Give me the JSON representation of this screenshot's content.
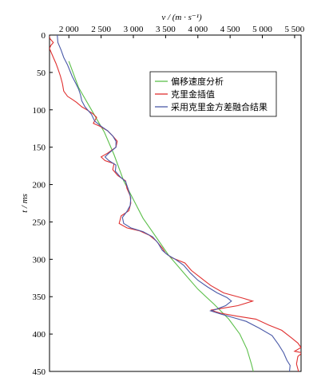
{
  "chart_data": {
    "type": "line",
    "xlabel": "v / (m · s⁻¹)",
    "ylabel": "t / ms",
    "x_axis_position": "top",
    "y_axis_inverted": true,
    "xlim": [
      1700,
      5600
    ],
    "ylim": [
      0,
      450
    ],
    "xticks": [
      2000,
      2500,
      3000,
      3500,
      4000,
      4500,
      5000,
      5500
    ],
    "xtick_labels": [
      "2 000",
      "2 500",
      "3 000",
      "3 500",
      "4 000",
      "4 500",
      "5 000",
      "5 500"
    ],
    "yticks": [
      0,
      50,
      100,
      150,
      200,
      250,
      300,
      350,
      400,
      450
    ],
    "ytick_labels": [
      "0",
      "50",
      "100",
      "150",
      "200",
      "250",
      "300",
      "350",
      "400",
      "450"
    ],
    "grid": false,
    "legend_position": "top-right",
    "series": [
      {
        "name": "偏移速度分析",
        "color": "#5cbf4a",
        "points": [
          [
            2000,
            35
          ],
          [
            2150,
            70
          ],
          [
            2350,
            100
          ],
          [
            2550,
            130
          ],
          [
            2700,
            160
          ],
          [
            2850,
            195
          ],
          [
            3000,
            220
          ],
          [
            3150,
            245
          ],
          [
            3350,
            270
          ],
          [
            3550,
            295
          ],
          [
            3800,
            320
          ],
          [
            4000,
            340
          ],
          [
            4250,
            360
          ],
          [
            4480,
            380
          ],
          [
            4650,
            400
          ],
          [
            4760,
            420
          ],
          [
            4830,
            440
          ],
          [
            4860,
            450
          ]
        ]
      },
      {
        "name": "克里金插值",
        "color": "#e03030",
        "points": [
          [
            1690,
            0
          ],
          [
            1710,
            5
          ],
          [
            1760,
            10
          ],
          [
            1720,
            14
          ],
          [
            1700,
            18
          ],
          [
            1730,
            24
          ],
          [
            1760,
            30
          ],
          [
            1800,
            38
          ],
          [
            1830,
            45
          ],
          [
            1870,
            55
          ],
          [
            1900,
            65
          ],
          [
            1920,
            75
          ],
          [
            1980,
            82
          ],
          [
            2050,
            86
          ],
          [
            2120,
            90
          ],
          [
            2200,
            96
          ],
          [
            2280,
            100
          ],
          [
            2370,
            105
          ],
          [
            2430,
            110
          ],
          [
            2380,
            118
          ],
          [
            2480,
            122
          ],
          [
            2600,
            128
          ],
          [
            2680,
            135
          ],
          [
            2750,
            142
          ],
          [
            2730,
            150
          ],
          [
            2600,
            158
          ],
          [
            2500,
            163
          ],
          [
            2560,
            168
          ],
          [
            2700,
            172
          ],
          [
            2680,
            180
          ],
          [
            2760,
            188
          ],
          [
            2880,
            195
          ],
          [
            2900,
            205
          ],
          [
            2950,
            215
          ],
          [
            2960,
            225
          ],
          [
            2930,
            235
          ],
          [
            2810,
            242
          ],
          [
            2780,
            252
          ],
          [
            2900,
            258
          ],
          [
            3100,
            262
          ],
          [
            3250,
            268
          ],
          [
            3350,
            275
          ],
          [
            3450,
            285
          ],
          [
            3500,
            292
          ],
          [
            3600,
            298
          ],
          [
            3800,
            305
          ],
          [
            3900,
            315
          ],
          [
            4050,
            325
          ],
          [
            4200,
            335
          ],
          [
            4400,
            345
          ],
          [
            4700,
            352
          ],
          [
            4850,
            356
          ],
          [
            4620,
            362
          ],
          [
            4350,
            366
          ],
          [
            4200,
            368
          ],
          [
            4350,
            372
          ],
          [
            4600,
            376
          ],
          [
            4900,
            380
          ],
          [
            5100,
            388
          ],
          [
            5300,
            395
          ],
          [
            5450,
            405
          ],
          [
            5550,
            412
          ],
          [
            5600,
            418
          ],
          [
            5500,
            423
          ],
          [
            5620,
            425
          ],
          [
            5550,
            430
          ],
          [
            5530,
            440
          ],
          [
            5560,
            450
          ]
        ]
      },
      {
        "name": "采用克里金方差融合结果",
        "color": "#4a5aa8",
        "points": [
          [
            1820,
            0
          ],
          [
            1830,
            10
          ],
          [
            1880,
            20
          ],
          [
            1920,
            30
          ],
          [
            1980,
            40
          ],
          [
            2050,
            55
          ],
          [
            2110,
            65
          ],
          [
            2150,
            72
          ],
          [
            2180,
            80
          ],
          [
            2200,
            88
          ],
          [
            2250,
            96
          ],
          [
            2350,
            106
          ],
          [
            2400,
            115
          ],
          [
            2500,
            122
          ],
          [
            2600,
            128
          ],
          [
            2680,
            135
          ],
          [
            2730,
            142
          ],
          [
            2730,
            150
          ],
          [
            2620,
            158
          ],
          [
            2560,
            163
          ],
          [
            2620,
            168
          ],
          [
            2730,
            174
          ],
          [
            2720,
            182
          ],
          [
            2800,
            190
          ],
          [
            2880,
            196
          ],
          [
            2920,
            206
          ],
          [
            2960,
            218
          ],
          [
            2950,
            228
          ],
          [
            2900,
            236
          ],
          [
            2830,
            244
          ],
          [
            2850,
            252
          ],
          [
            2960,
            258
          ],
          [
            3150,
            263
          ],
          [
            3300,
            270
          ],
          [
            3380,
            278
          ],
          [
            3450,
            288
          ],
          [
            3530,
            294
          ],
          [
            3650,
            300
          ],
          [
            3780,
            308
          ],
          [
            3880,
            318
          ],
          [
            4000,
            328
          ],
          [
            4150,
            337
          ],
          [
            4300,
            345
          ],
          [
            4450,
            351
          ],
          [
            4520,
            356
          ],
          [
            4430,
            362
          ],
          [
            4280,
            367
          ],
          [
            4200,
            369
          ],
          [
            4350,
            373
          ],
          [
            4550,
            378
          ],
          [
            4750,
            383
          ],
          [
            4950,
            392
          ],
          [
            5150,
            402
          ],
          [
            5250,
            414
          ],
          [
            5330,
            425
          ],
          [
            5380,
            435
          ],
          [
            5430,
            442
          ],
          [
            5420,
            450
          ]
        ]
      }
    ]
  }
}
